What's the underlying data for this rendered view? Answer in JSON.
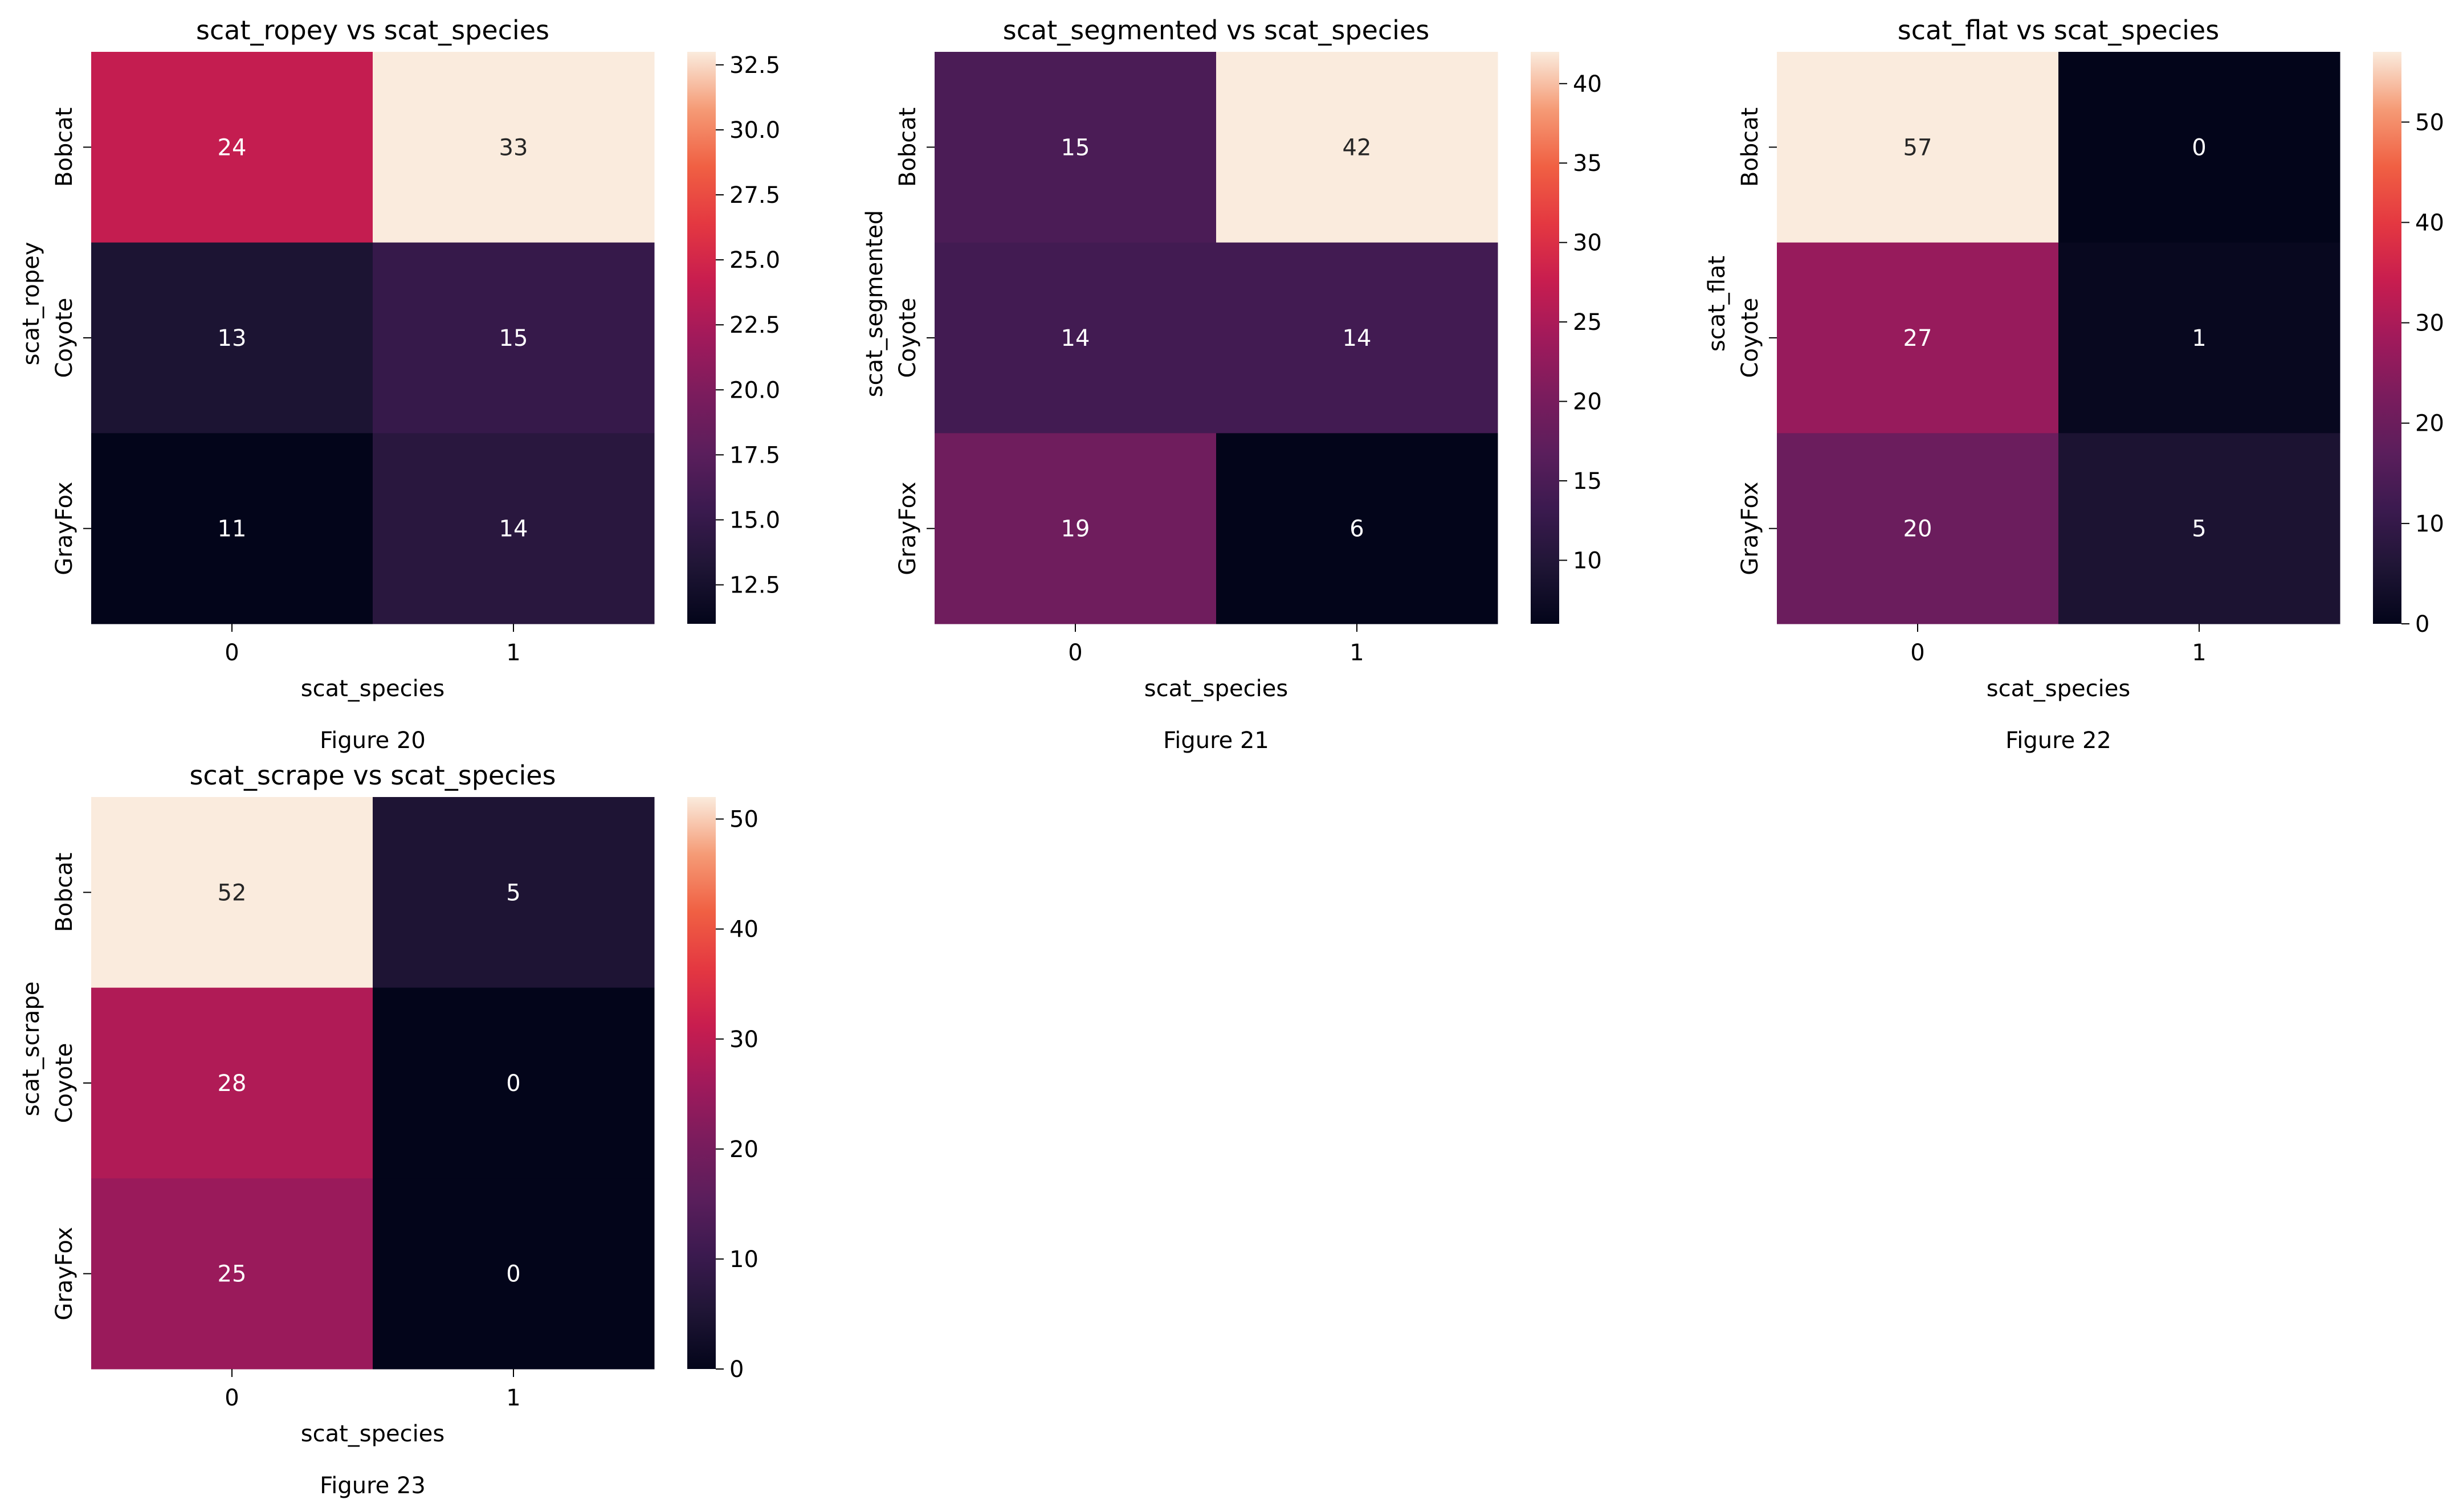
{
  "chart_data": [
    {
      "type": "heatmap",
      "title": "scat_ropey vs scat_species",
      "xlabel": "scat_species",
      "ylabel": "scat_ropey",
      "caption": "Figure 20",
      "x_categories": [
        "0",
        "1"
      ],
      "y_categories": [
        "Bobcat",
        "Coyote",
        "GrayFox"
      ],
      "values": [
        [
          24,
          33
        ],
        [
          13,
          15
        ],
        [
          11,
          14
        ]
      ],
      "vmin": 11,
      "vmax": 33,
      "colorbar_ticks": [
        12.5,
        15.0,
        17.5,
        20.0,
        22.5,
        25.0,
        27.5,
        30.0,
        32.5
      ],
      "colorbar_tick_labels": [
        "12.5",
        "15.0",
        "17.5",
        "20.0",
        "22.5",
        "25.0",
        "27.5",
        "30.0",
        "32.5"
      ]
    },
    {
      "type": "heatmap",
      "title": "scat_segmented vs scat_species",
      "xlabel": "scat_species",
      "ylabel": "scat_segmented",
      "caption": "Figure 21",
      "x_categories": [
        "0",
        "1"
      ],
      "y_categories": [
        "Bobcat",
        "Coyote",
        "GrayFox"
      ],
      "values": [
        [
          15,
          42
        ],
        [
          14,
          14
        ],
        [
          19,
          6
        ]
      ],
      "vmin": 6,
      "vmax": 42,
      "colorbar_ticks": [
        10,
        15,
        20,
        25,
        30,
        35,
        40
      ],
      "colorbar_tick_labels": [
        "10",
        "15",
        "20",
        "25",
        "30",
        "35",
        "40"
      ]
    },
    {
      "type": "heatmap",
      "title": "scat_flat vs scat_species",
      "xlabel": "scat_species",
      "ylabel": "scat_flat",
      "caption": "Figure 22",
      "x_categories": [
        "0",
        "1"
      ],
      "y_categories": [
        "Bobcat",
        "Coyote",
        "GrayFox"
      ],
      "values": [
        [
          57,
          0
        ],
        [
          27,
          1
        ],
        [
          20,
          5
        ]
      ],
      "vmin": 0,
      "vmax": 57,
      "colorbar_ticks": [
        0,
        10,
        20,
        30,
        40,
        50
      ],
      "colorbar_tick_labels": [
        "0",
        "10",
        "20",
        "30",
        "40",
        "50"
      ]
    },
    {
      "type": "heatmap",
      "title": "scat_scrape vs scat_species",
      "xlabel": "scat_species",
      "ylabel": "scat_scrape",
      "caption": "Figure 23",
      "x_categories": [
        "0",
        "1"
      ],
      "y_categories": [
        "Bobcat",
        "Coyote",
        "GrayFox"
      ],
      "values": [
        [
          52,
          5
        ],
        [
          28,
          0
        ],
        [
          25,
          0
        ]
      ],
      "vmin": 0,
      "vmax": 52,
      "colorbar_ticks": [
        0,
        10,
        20,
        30,
        40,
        50
      ],
      "colorbar_tick_labels": [
        "0",
        "10",
        "20",
        "30",
        "40",
        "50"
      ]
    }
  ]
}
